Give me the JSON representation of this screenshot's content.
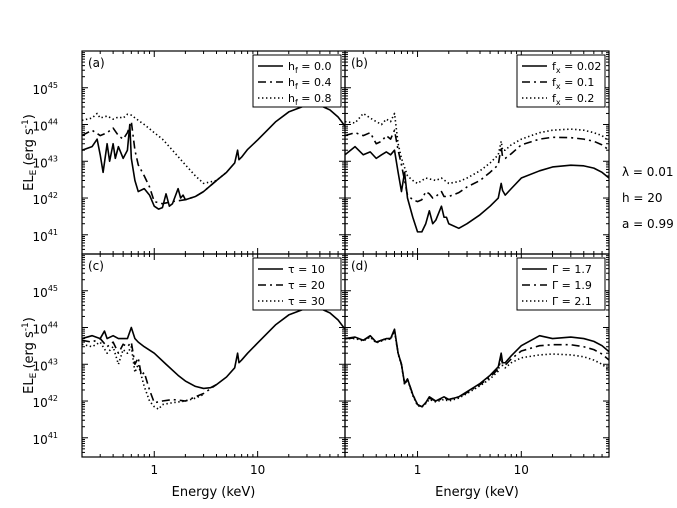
{
  "figure": {
    "xlabel": "Energy (keV)",
    "ylabel_main": "EL",
    "ylabel_sub": "E",
    "ylabel_unit": " (erg s",
    "ylabel_exp": "-1",
    "ylabel_close": ")",
    "side_params": [
      "λ = 0.01",
      "h = 20",
      "a = 0.99"
    ],
    "x_tick_labels": [
      "1",
      "10"
    ],
    "y_tick_labels": [
      {
        "base": "10",
        "exp": "41"
      },
      {
        "base": "10",
        "exp": "42"
      },
      {
        "base": "10",
        "exp": "43"
      },
      {
        "base": "10",
        "exp": "44"
      },
      {
        "base": "10",
        "exp": "45"
      }
    ]
  },
  "chart_data": [
    {
      "type": "line",
      "panel": "(a)",
      "xscale": "log",
      "yscale": "log",
      "xlim": [
        0.2,
        70
      ],
      "ylim": [
        3e+40,
        1e+46
      ],
      "series": [
        {
          "name": "h_f = 0.0",
          "legend_main": "h",
          "legend_sub": "f",
          "legend_value": " = 0.0",
          "style": "solid",
          "x": [
            0.2,
            0.25,
            0.28,
            0.3,
            0.32,
            0.35,
            0.37,
            0.4,
            0.42,
            0.45,
            0.5,
            0.55,
            0.58,
            0.6,
            0.65,
            0.7,
            0.8,
            0.9,
            1.0,
            1.1,
            1.2,
            1.3,
            1.4,
            1.5,
            1.7,
            1.8,
            1.9,
            2.0,
            2.5,
            3.0,
            4.0,
            5.0,
            6.0,
            6.4,
            6.6,
            7.0,
            8,
            10,
            15,
            20,
            30,
            40,
            50,
            60,
            70
          ],
          "y": [
            2e+43,
            2.5e+43,
            4e+43,
            1.5e+43,
            5e+42,
            3e+43,
            1e+43,
            3e+43,
            1.2e+43,
            2.5e+43,
            1.2e+43,
            2e+43,
            1e+44,
            1.2e+43,
            3e+42,
            1.5e+42,
            1.8e+42,
            1.2e+42,
            6e+41,
            5e+41,
            5.5e+41,
            1.3e+42,
            6e+41,
            7e+41,
            1.8e+42,
            1e+42,
            1.2e+42,
            9e+41,
            1.1e+42,
            1.5e+42,
            3e+42,
            5e+42,
            9e+42,
            2e+43,
            1.1e+43,
            1.3e+43,
            2.1e+43,
            3.8e+43,
            1.2e+44,
            2.2e+44,
            3.4e+44,
            3.3e+44,
            2.5e+44,
            1.6e+44,
            9e+43
          ]
        },
        {
          "name": "h_f = 0.4",
          "legend_main": "h",
          "legend_sub": "f",
          "legend_value": " = 0.4",
          "style": "dashed",
          "x": [
            0.2,
            0.25,
            0.3,
            0.35,
            0.4,
            0.45,
            0.5,
            0.55,
            0.6,
            0.65,
            0.7,
            0.8,
            0.9,
            1.0,
            1.2,
            1.5,
            2.0,
            2.5,
            3.0,
            4.0
          ],
          "y": [
            5e+43,
            7e+43,
            5e+43,
            6e+43,
            8e+43,
            5e+43,
            4e+43,
            6e+43,
            1.2e+44,
            2e+43,
            8e+42,
            4e+42,
            2e+42,
            8e+41,
            7e+41,
            8e+41,
            9e+41,
            1.1e+42,
            1.5e+42,
            3e+42
          ]
        },
        {
          "name": "h_f = 0.8",
          "legend_main": "h",
          "legend_sub": "f",
          "legend_value": " = 0.8",
          "style": "dotted",
          "x": [
            0.2,
            0.25,
            0.28,
            0.3,
            0.35,
            0.4,
            0.45,
            0.5,
            0.55,
            0.6,
            0.7,
            0.8,
            1.0,
            1.2,
            1.5,
            2.0,
            2.5,
            3.0,
            4.0,
            5.0
          ],
          "y": [
            1.3e+44,
            1.5e+44,
            2e+44,
            1.5e+44,
            1.7e+44,
            1.4e+44,
            1.6e+44,
            1.5e+44,
            1.9e+44,
            1.8e+44,
            1.3e+44,
            1e+44,
            6e+43,
            4e+43,
            2e+43,
            8e+42,
            4e+42,
            2.5e+42,
            3e+42,
            5e+42
          ]
        }
      ]
    },
    {
      "type": "line",
      "panel": "(b)",
      "xscale": "log",
      "yscale": "log",
      "xlim": [
        0.2,
        70
      ],
      "ylim": [
        3e+40,
        1e+46
      ],
      "series": [
        {
          "name": "f_x = 0.02",
          "legend_main": "f",
          "legend_sub": "x",
          "legend_value": " = 0.02",
          "style": "solid",
          "x": [
            0.2,
            0.25,
            0.3,
            0.35,
            0.4,
            0.45,
            0.5,
            0.55,
            0.6,
            0.65,
            0.7,
            0.75,
            0.8,
            0.9,
            1.0,
            1.1,
            1.2,
            1.3,
            1.4,
            1.5,
            1.7,
            1.8,
            1.9,
            2.0,
            2.5,
            3.0,
            4.0,
            5.0,
            6.0,
            6.4,
            6.6,
            7.0,
            8,
            10,
            15,
            20,
            30,
            40,
            50,
            60,
            70
          ],
          "y": [
            1.5e+43,
            2.5e+43,
            1.5e+43,
            1.8e+43,
            1.2e+43,
            1.5e+43,
            1.8e+43,
            1.5e+43,
            2e+43,
            5e+42,
            1.5e+42,
            5e+42,
            1e+42,
            3e+41,
            1.2e+41,
            1.2e+41,
            2e+41,
            4.5e+41,
            2e+41,
            2.5e+41,
            6e+41,
            3e+41,
            3e+41,
            2e+41,
            1.5e+41,
            2e+41,
            3.5e+41,
            6e+41,
            1e+42,
            2.5e+42,
            1.6e+42,
            1.2e+42,
            1.8e+42,
            3.5e+42,
            5.5e+42,
            7e+42,
            7.8e+42,
            7.5e+42,
            6.5e+42,
            5e+42,
            3.5e+42
          ]
        },
        {
          "name": "f_x = 0.1",
          "legend_main": "f",
          "legend_sub": "x",
          "legend_value": " = 0.1",
          "style": "dashed",
          "x": [
            0.2,
            0.25,
            0.3,
            0.35,
            0.4,
            0.45,
            0.5,
            0.55,
            0.6,
            0.65,
            0.7,
            0.8,
            0.9,
            1.0,
            1.1,
            1.2,
            1.3,
            1.4,
            1.5,
            1.7,
            1.8,
            2.0,
            2.5,
            3.0,
            4.0,
            5.0,
            6.0,
            6.4,
            6.6,
            7.0,
            8,
            10,
            15,
            20,
            30,
            40,
            50,
            60,
            70
          ],
          "y": [
            5e+43,
            6e+43,
            5e+43,
            6e+43,
            3e+43,
            3.5e+43,
            5e+43,
            4e+43,
            7e+43,
            2e+43,
            8e+42,
            1.2e+42,
            9e+41,
            8e+41,
            9e+41,
            1.5e+42,
            1.3e+42,
            1e+42,
            1.1e+42,
            1.5e+42,
            1.1e+42,
            1.1e+42,
            1.4e+42,
            2e+42,
            3e+42,
            5e+42,
            8e+42,
            2.5e+43,
            1.3e+43,
            1.2e+43,
            1.6e+43,
            2.8e+43,
            4e+43,
            4.5e+43,
            4.4e+43,
            4e+43,
            3.5e+43,
            2.8e+43,
            2e+43
          ]
        },
        {
          "name": "f_x = 0.2",
          "legend_main": "f",
          "legend_sub": "x",
          "legend_value": " = 0.2",
          "style": "dotted",
          "x": [
            0.2,
            0.25,
            0.3,
            0.35,
            0.4,
            0.45,
            0.5,
            0.55,
            0.6,
            0.65,
            0.7,
            0.8,
            0.9,
            1.0,
            1.2,
            1.5,
            1.7,
            2.0,
            2.5,
            3.0,
            4.0,
            5.0,
            6.0,
            6.4,
            6.6,
            7.0,
            8,
            10,
            15,
            20,
            30,
            40,
            50,
            60,
            70
          ],
          "y": [
            1.2e+44,
            1.1e+44,
            2e+44,
            1.5e+44,
            1.2e+44,
            1e+44,
            1.4e+44,
            1.2e+44,
            2e+44,
            3e+43,
            1.2e+43,
            4e+42,
            3e+42,
            2.5e+42,
            3.5e+42,
            3e+42,
            3.5e+42,
            2.5e+42,
            2.8e+42,
            3.5e+42,
            5.5e+42,
            9e+42,
            1.5e+43,
            3.5e+43,
            2e+43,
            2e+43,
            2.8e+43,
            4e+43,
            6e+43,
            7e+43,
            7.5e+43,
            7e+43,
            6e+43,
            5e+43,
            3.5e+43
          ]
        }
      ]
    },
    {
      "type": "line",
      "panel": "(c)",
      "xscale": "log",
      "yscale": "log",
      "xlim": [
        0.2,
        70
      ],
      "ylim": [
        3e+40,
        1e+46
      ],
      "series": [
        {
          "name": "τ = 10",
          "legend_main": "τ",
          "legend_sub": "",
          "legend_value": " = 10",
          "style": "solid",
          "x": [
            0.2,
            0.25,
            0.3,
            0.33,
            0.35,
            0.4,
            0.45,
            0.5,
            0.55,
            0.6,
            0.65,
            0.7,
            0.8,
            1.0,
            1.3,
            1.7,
            2.0,
            2.5,
            3.0,
            3.5,
            4.0,
            5.0,
            6.0,
            6.4,
            6.6,
            7.0,
            8,
            10,
            15,
            20,
            30,
            40,
            50,
            60,
            70
          ],
          "y": [
            5e+43,
            6e+43,
            5e+43,
            8e+43,
            5e+43,
            6e+43,
            5e+43,
            5e+43,
            5e+43,
            1e+44,
            5e+43,
            4e+43,
            3e+43,
            2e+43,
            1e+43,
            5e+42,
            3.5e+42,
            2.5e+42,
            2.2e+42,
            2.3e+42,
            2.8e+42,
            4.5e+42,
            8e+42,
            2e+43,
            1.1e+43,
            1.3e+43,
            2e+43,
            3.8e+43,
            1.2e+44,
            2.2e+44,
            3.4e+44,
            3.3e+44,
            2.5e+44,
            1.6e+44,
            9e+43
          ]
        },
        {
          "name": "τ = 20",
          "legend_main": "τ",
          "legend_sub": "",
          "legend_value": " = 20",
          "style": "dashed",
          "x": [
            0.2,
            0.25,
            0.3,
            0.35,
            0.4,
            0.45,
            0.5,
            0.55,
            0.6,
            0.65,
            0.7,
            0.75,
            0.8,
            0.9,
            1.0,
            1.2,
            1.5,
            2.0,
            2.5,
            3.0,
            4.0
          ],
          "y": [
            4.5e+43,
            4e+43,
            5e+43,
            3e+43,
            4e+43,
            2e+43,
            3.5e+43,
            3e+43,
            4e+43,
            1e+43,
            1.5e+43,
            5e+42,
            6e+42,
            2e+42,
            9e+41,
            1e+42,
            1.1e+42,
            1e+42,
            1.3e+42,
            1.6e+42,
            2.8e+42
          ]
        },
        {
          "name": "τ = 30",
          "legend_main": "τ",
          "legend_sub": "",
          "legend_value": " = 30",
          "style": "dotted",
          "x": [
            0.2,
            0.25,
            0.3,
            0.35,
            0.4,
            0.45,
            0.5,
            0.55,
            0.6,
            0.65,
            0.7,
            0.8,
            0.9,
            1.0,
            1.1,
            1.2,
            1.5,
            2.0,
            2.5,
            3.0
          ],
          "y": [
            3.5e+43,
            3e+43,
            4e+43,
            2e+43,
            3e+43,
            1e+43,
            2.5e+43,
            2e+43,
            3e+43,
            6e+42,
            1e+43,
            2.5e+42,
            1e+42,
            7e+41,
            6e+41,
            8e+41,
            9e+41,
            1e+42,
            1.2e+42,
            1.5e+42
          ]
        }
      ]
    },
    {
      "type": "line",
      "panel": "(d)",
      "xscale": "log",
      "yscale": "log",
      "xlim": [
        0.2,
        70
      ],
      "ylim": [
        3e+40,
        1e+46
      ],
      "series": [
        {
          "name": "Γ = 1.7",
          "legend_main": "Γ",
          "legend_sub": "",
          "legend_value": " = 1.7",
          "style": "solid",
          "x": [
            0.2,
            0.25,
            0.3,
            0.35,
            0.4,
            0.45,
            0.5,
            0.55,
            0.6,
            0.65,
            0.7,
            0.75,
            0.8,
            0.9,
            1.0,
            1.1,
            1.2,
            1.3,
            1.5,
            1.8,
            2.0,
            2.5,
            3.0,
            4.0,
            5.0,
            6.0,
            6.4,
            6.6,
            7.0,
            8,
            10,
            15,
            20,
            30,
            40,
            50,
            60,
            70
          ],
          "y": [
            5e+43,
            5.5e+43,
            4.5e+43,
            6e+43,
            4e+43,
            4.5e+43,
            5e+43,
            5e+43,
            9e+43,
            2e+43,
            1e+43,
            3e+42,
            4e+42,
            1.5e+42,
            8e+41,
            7e+41,
            9e+41,
            1.3e+42,
            1e+42,
            1.3e+42,
            1.1e+42,
            1.3e+42,
            1.8e+42,
            3e+42,
            5e+42,
            8.5e+42,
            2e+43,
            1.1e+43,
            1.1e+43,
            1.7e+43,
            3.2e+43,
            6e+43,
            5e+43,
            5.5e+43,
            5e+43,
            4.2e+43,
            3.2e+43,
            2.2e+43
          ]
        },
        {
          "name": "Γ = 1.9",
          "legend_main": "Γ",
          "legend_sub": "",
          "legend_value": " = 1.9",
          "style": "dashed",
          "x": [
            0.2,
            0.25,
            0.3,
            0.35,
            0.4,
            0.45,
            0.5,
            0.55,
            0.6,
            0.65,
            0.7,
            0.75,
            0.8,
            0.9,
            1.0,
            1.1,
            1.2,
            1.3,
            1.5,
            1.8,
            2.0,
            2.5,
            3.0,
            4.0,
            5.0,
            6.0,
            6.4,
            6.6,
            7.0,
            8,
            10,
            15,
            20,
            30,
            40,
            50,
            60,
            70
          ],
          "y": [
            5e+43,
            5.2e+43,
            4.5e+43,
            5.8e+43,
            4e+43,
            4.5e+43,
            5e+43,
            5e+43,
            8.5e+43,
            2e+43,
            1e+43,
            3e+42,
            4e+42,
            1.5e+42,
            8e+41,
            7e+41,
            9e+41,
            1.2e+42,
            1e+42,
            1.2e+42,
            1.1e+42,
            1.3e+42,
            1.7e+42,
            2.8e+42,
            4.5e+42,
            7.5e+42,
            1.8e+43,
            1e+43,
            9.5e+42,
            1.4e+43,
            2.3e+43,
            3.2e+43,
            3.4e+43,
            3.4e+43,
            3e+43,
            2.5e+43,
            1.9e+43,
            1.3e+43
          ]
        },
        {
          "name": "Γ = 2.1",
          "legend_main": "Γ",
          "legend_sub": "",
          "legend_value": " = 2.1",
          "style": "dotted",
          "x": [
            0.2,
            0.25,
            0.3,
            0.35,
            0.4,
            0.45,
            0.5,
            0.55,
            0.6,
            0.65,
            0.7,
            0.75,
            0.8,
            0.9,
            1.0,
            1.1,
            1.2,
            1.3,
            1.5,
            1.8,
            2.0,
            2.5,
            3.0,
            4.0,
            5.0,
            6.0,
            6.4,
            6.6,
            7.0,
            8,
            10,
            15,
            20,
            30,
            40,
            50,
            60,
            70
          ],
          "y": [
            5e+43,
            5e+43,
            4.3e+43,
            5.5e+43,
            3.8e+43,
            4.3e+43,
            4.8e+43,
            4.8e+43,
            8e+43,
            1.9e+43,
            9.5e+42,
            2.8e+42,
            3.8e+42,
            1.4e+42,
            7.5e+41,
            6.8e+41,
            8.5e+41,
            1.1e+42,
            9.5e+41,
            1.1e+42,
            1e+42,
            1.2e+42,
            1.6e+42,
            2.6e+42,
            4e+42,
            6.5e+42,
            1.6e+43,
            9e+42,
            8e+42,
            1.1e+43,
            1.5e+43,
            1.8e+43,
            1.9e+43,
            1.8e+43,
            1.6e+43,
            1.3e+43,
            1e+43,
            7e+42
          ]
        }
      ]
    }
  ]
}
